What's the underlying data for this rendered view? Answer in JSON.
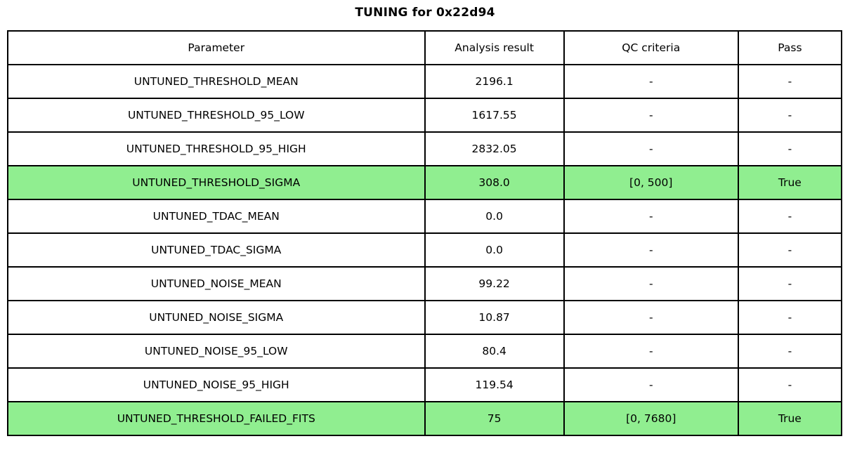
{
  "title": "TUNING for 0x22d94",
  "table": {
    "columns": [
      "Parameter",
      "Analysis result",
      "QC criteria",
      "Pass"
    ],
    "highlight_color": "#90ee90",
    "rows": [
      {
        "parameter": "UNTUNED_THRESHOLD_MEAN",
        "result": "2196.1",
        "qc": "-",
        "pass": "-",
        "highlight": false
      },
      {
        "parameter": "UNTUNED_THRESHOLD_95_LOW",
        "result": "1617.55",
        "qc": "-",
        "pass": "-",
        "highlight": false
      },
      {
        "parameter": "UNTUNED_THRESHOLD_95_HIGH",
        "result": "2832.05",
        "qc": "-",
        "pass": "-",
        "highlight": false
      },
      {
        "parameter": "UNTUNED_THRESHOLD_SIGMA",
        "result": "308.0",
        "qc": "[0, 500]",
        "pass": "True",
        "highlight": true
      },
      {
        "parameter": "UNTUNED_TDAC_MEAN",
        "result": "0.0",
        "qc": "-",
        "pass": "-",
        "highlight": false
      },
      {
        "parameter": "UNTUNED_TDAC_SIGMA",
        "result": "0.0",
        "qc": "-",
        "pass": "-",
        "highlight": false
      },
      {
        "parameter": "UNTUNED_NOISE_MEAN",
        "result": "99.22",
        "qc": "-",
        "pass": "-",
        "highlight": false
      },
      {
        "parameter": "UNTUNED_NOISE_SIGMA",
        "result": "10.87",
        "qc": "-",
        "pass": "-",
        "highlight": false
      },
      {
        "parameter": "UNTUNED_NOISE_95_LOW",
        "result": "80.4",
        "qc": "-",
        "pass": "-",
        "highlight": false
      },
      {
        "parameter": "UNTUNED_NOISE_95_HIGH",
        "result": "119.54",
        "qc": "-",
        "pass": "-",
        "highlight": false
      },
      {
        "parameter": "UNTUNED_THRESHOLD_FAILED_FITS",
        "result": "75",
        "qc": "[0, 7680]",
        "pass": "True",
        "highlight": true
      }
    ]
  },
  "chart_data": {
    "type": "table",
    "title": "TUNING for 0x22d94",
    "columns": [
      "Parameter",
      "Analysis result",
      "QC criteria",
      "Pass"
    ],
    "rows": [
      [
        "UNTUNED_THRESHOLD_MEAN",
        "2196.1",
        "-",
        "-"
      ],
      [
        "UNTUNED_THRESHOLD_95_LOW",
        "1617.55",
        "-",
        "-"
      ],
      [
        "UNTUNED_THRESHOLD_95_HIGH",
        "2832.05",
        "-",
        "-"
      ],
      [
        "UNTUNED_THRESHOLD_SIGMA",
        "308.0",
        "[0, 500]",
        "True"
      ],
      [
        "UNTUNED_TDAC_MEAN",
        "0.0",
        "-",
        "-"
      ],
      [
        "UNTUNED_TDAC_SIGMA",
        "0.0",
        "-",
        "-"
      ],
      [
        "UNTUNED_NOISE_MEAN",
        "99.22",
        "-",
        "-"
      ],
      [
        "UNTUNED_NOISE_SIGMA",
        "10.87",
        "-",
        "-"
      ],
      [
        "UNTUNED_NOISE_95_LOW",
        "80.4",
        "-",
        "-"
      ],
      [
        "UNTUNED_NOISE_95_HIGH",
        "119.54",
        "-",
        "-"
      ],
      [
        "UNTUNED_THRESHOLD_FAILED_FITS",
        "75",
        "[0, 7680]",
        "True"
      ]
    ],
    "highlighted_rows": [
      3,
      10
    ],
    "highlight_color": "#90ee90"
  }
}
